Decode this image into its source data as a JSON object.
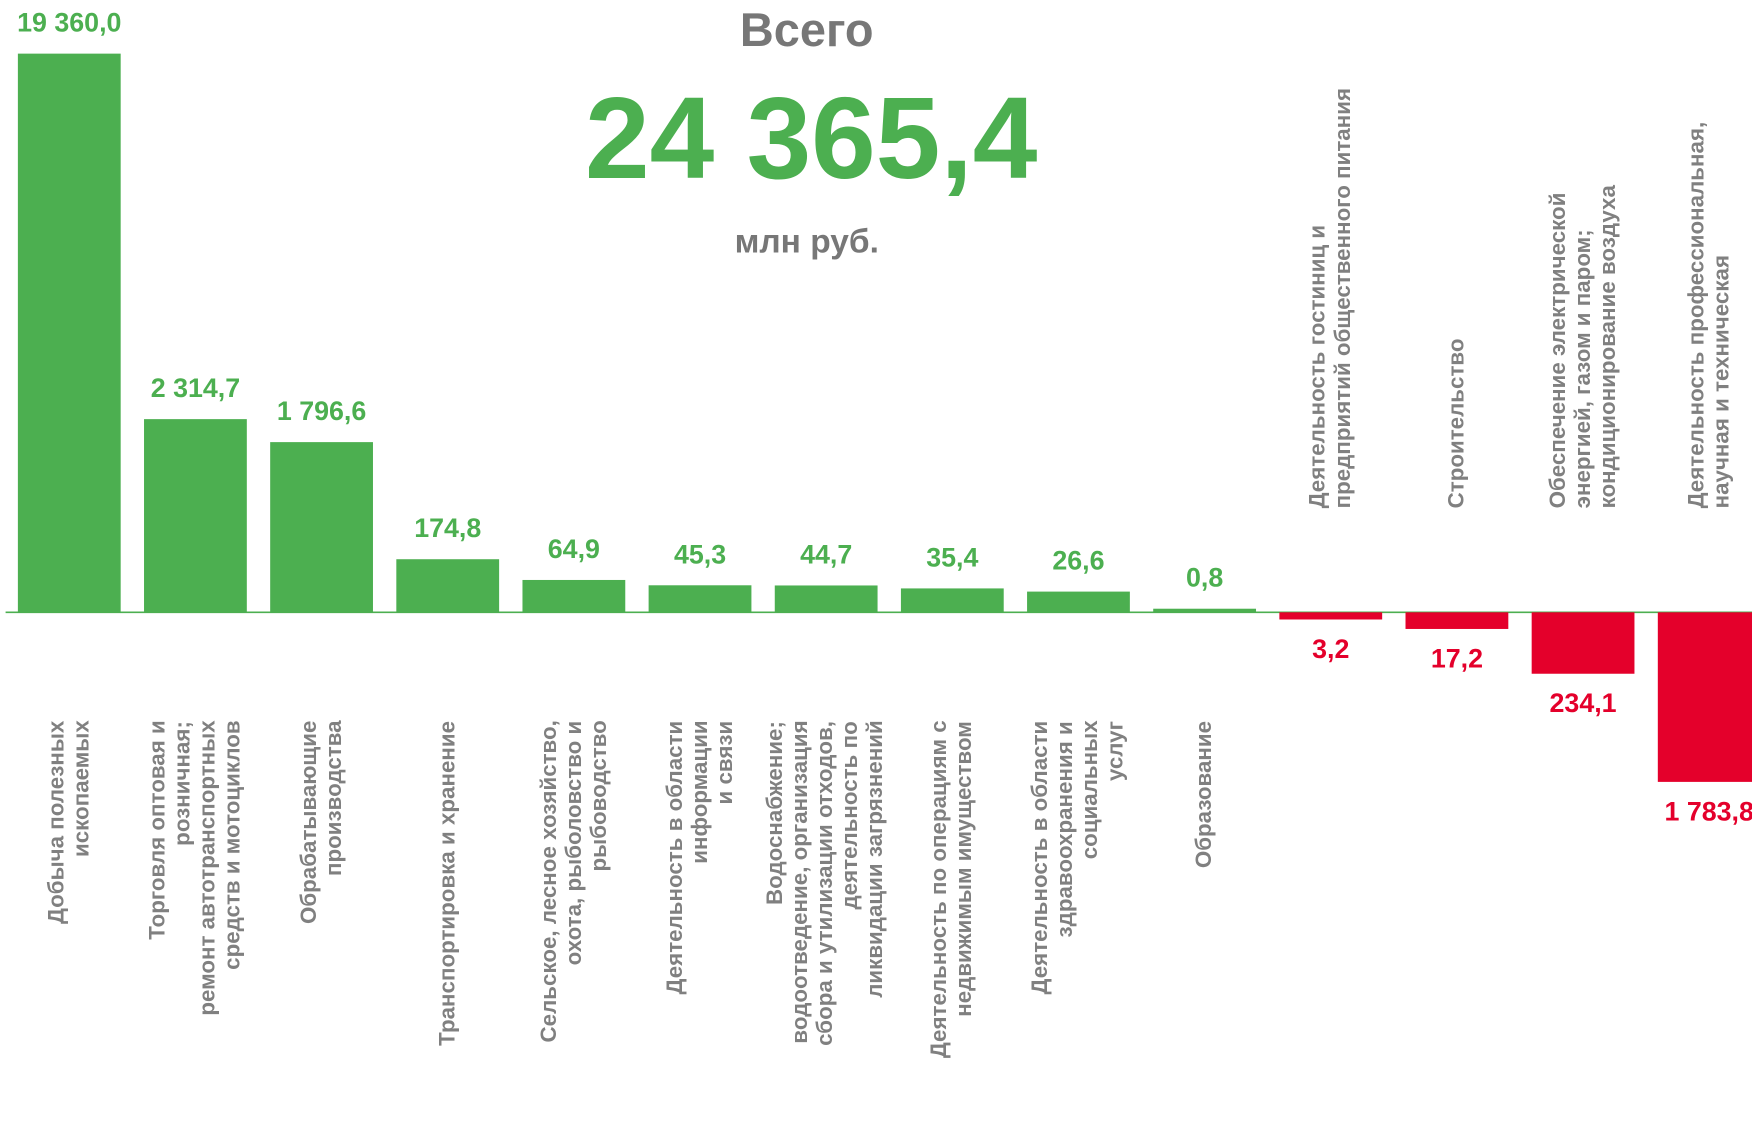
{
  "chart_data": {
    "type": "bar",
    "title": "Всего",
    "total": "24 365,4",
    "unit": "млн руб.",
    "categories": [
      "Добыча полезных\nископаемых",
      "Торговля оптовая и\nрозничная;\nремонт автотранспортных\nсредств и мотоциклов",
      "Обрабатывающие\nпроизводства",
      "Транспортировка и хранение",
      "Сельское, лесное хозяйство,\nохота, рыболовство и\nрыбоводство",
      "Деятельность в области\nинформации\nи связи",
      "Водоснабжение;\nводоотведение, организация\nсбора и утилизации отходов,\nдеятельность по\nликвидации загрязнений",
      "Деятельность по операциям с\nнедвижимым имуществом",
      "Деятельность в области\nздравоохранения и\nсоциальных\nуслуг",
      "Образование",
      "Деятельность гостиниц и\nпредприятий общественного питания",
      "Строительство",
      "Обеспечение электрической\nэнергией, газом и паром;\nкондиционирование воздуха",
      "Деятельность профессиональная,\nнаучная и техническая"
    ],
    "values": [
      19360.0,
      2314.7,
      1796.6,
      174.8,
      64.9,
      45.3,
      44.7,
      35.4,
      26.6,
      0.8,
      -3.2,
      -17.2,
      -234.1,
      -1783.8
    ],
    "value_labels": [
      "19 360,0",
      "2 314,7",
      "1 796,6",
      "174,8",
      "64,9",
      "45,3",
      "44,7",
      "35,4",
      "26,6",
      "0,8",
      "3,2",
      "17,2",
      "234,1",
      "1 783,8"
    ],
    "colors": {
      "positive": "#4caf50",
      "negative": "#e4002b"
    }
  }
}
